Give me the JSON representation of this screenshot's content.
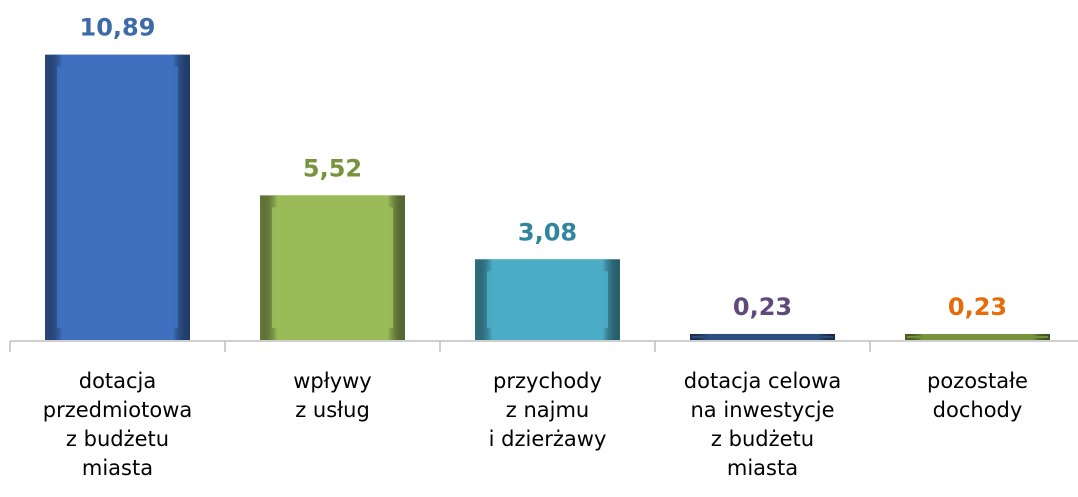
{
  "chart_data": {
    "type": "bar",
    "categories": [
      "dotacja\nprzedmiotowa\nz budżetu\nmiasta",
      "wpływy\nz usług",
      "przychody\nz najmu\ni dzierżawy",
      "dotacja celowa\nna inwestycje\nz budżetu\nmiasta",
      "pozostałe\ndochody"
    ],
    "values": [
      10.89,
      5.52,
      3.08,
      0.23,
      0.23
    ],
    "value_labels": [
      "10,89",
      "5,52",
      "3,08",
      "0,23",
      "0,23"
    ],
    "colors": [
      "#3f6fbf",
      "#9bbb59",
      "#4bacc6",
      "#2c4f7f",
      "#77933c"
    ],
    "label_colors": [
      "#3d6aa8",
      "#77933c",
      "#31859c",
      "#604a7b",
      "#e46c0a"
    ]
  }
}
